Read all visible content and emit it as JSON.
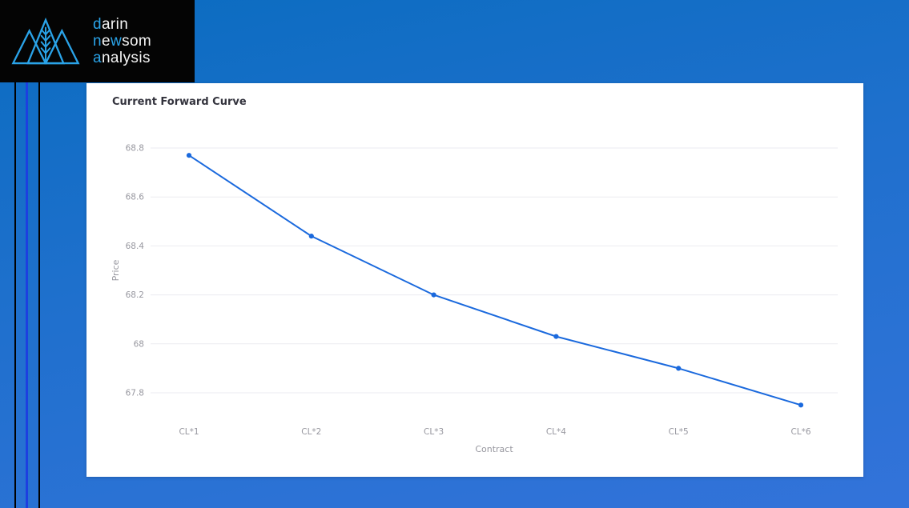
{
  "colors": {
    "bg_top": "#0a6cc0",
    "bg_bottom": "#3373da",
    "header_bg": "#040404",
    "stripe_black": "#000000",
    "stripe_blue": "#1d3fe0",
    "accent_blue": "#2aa3e8",
    "card_bg": "#ffffff",
    "title_color": "#33333d",
    "tick_text": "#97979f",
    "grid": "#ebebf0",
    "line_blue": "#1a69dd"
  },
  "brand": {
    "line1": {
      "accent": "d",
      "rest": "arin"
    },
    "line2": {
      "seg1": "n",
      "seg2": "e",
      "seg3": "w",
      "seg4": "som"
    },
    "line3": {
      "accent": "a",
      "rest": "nalysis"
    }
  },
  "chart_data": {
    "type": "line",
    "title": "Current Forward Curve",
    "xlabel": "Contract",
    "ylabel": "Price",
    "categories": [
      "CL*1",
      "CL*2",
      "CL*3",
      "CL*4",
      "CL*5",
      "CL*6"
    ],
    "values": [
      68.77,
      68.44,
      68.2,
      68.03,
      67.9,
      67.75
    ],
    "yticks": [
      {
        "label": "68.8",
        "value": 68.8
      },
      {
        "label": "68.6",
        "value": 68.6
      },
      {
        "label": "68.4",
        "value": 68.4
      },
      {
        "label": "68.2",
        "value": 68.2
      },
      {
        "label": "68",
        "value": 68.0
      },
      {
        "label": "67.8",
        "value": 67.8
      }
    ],
    "ylim": [
      67.7,
      68.9
    ],
    "grid": "horizontal",
    "legend": "none"
  }
}
